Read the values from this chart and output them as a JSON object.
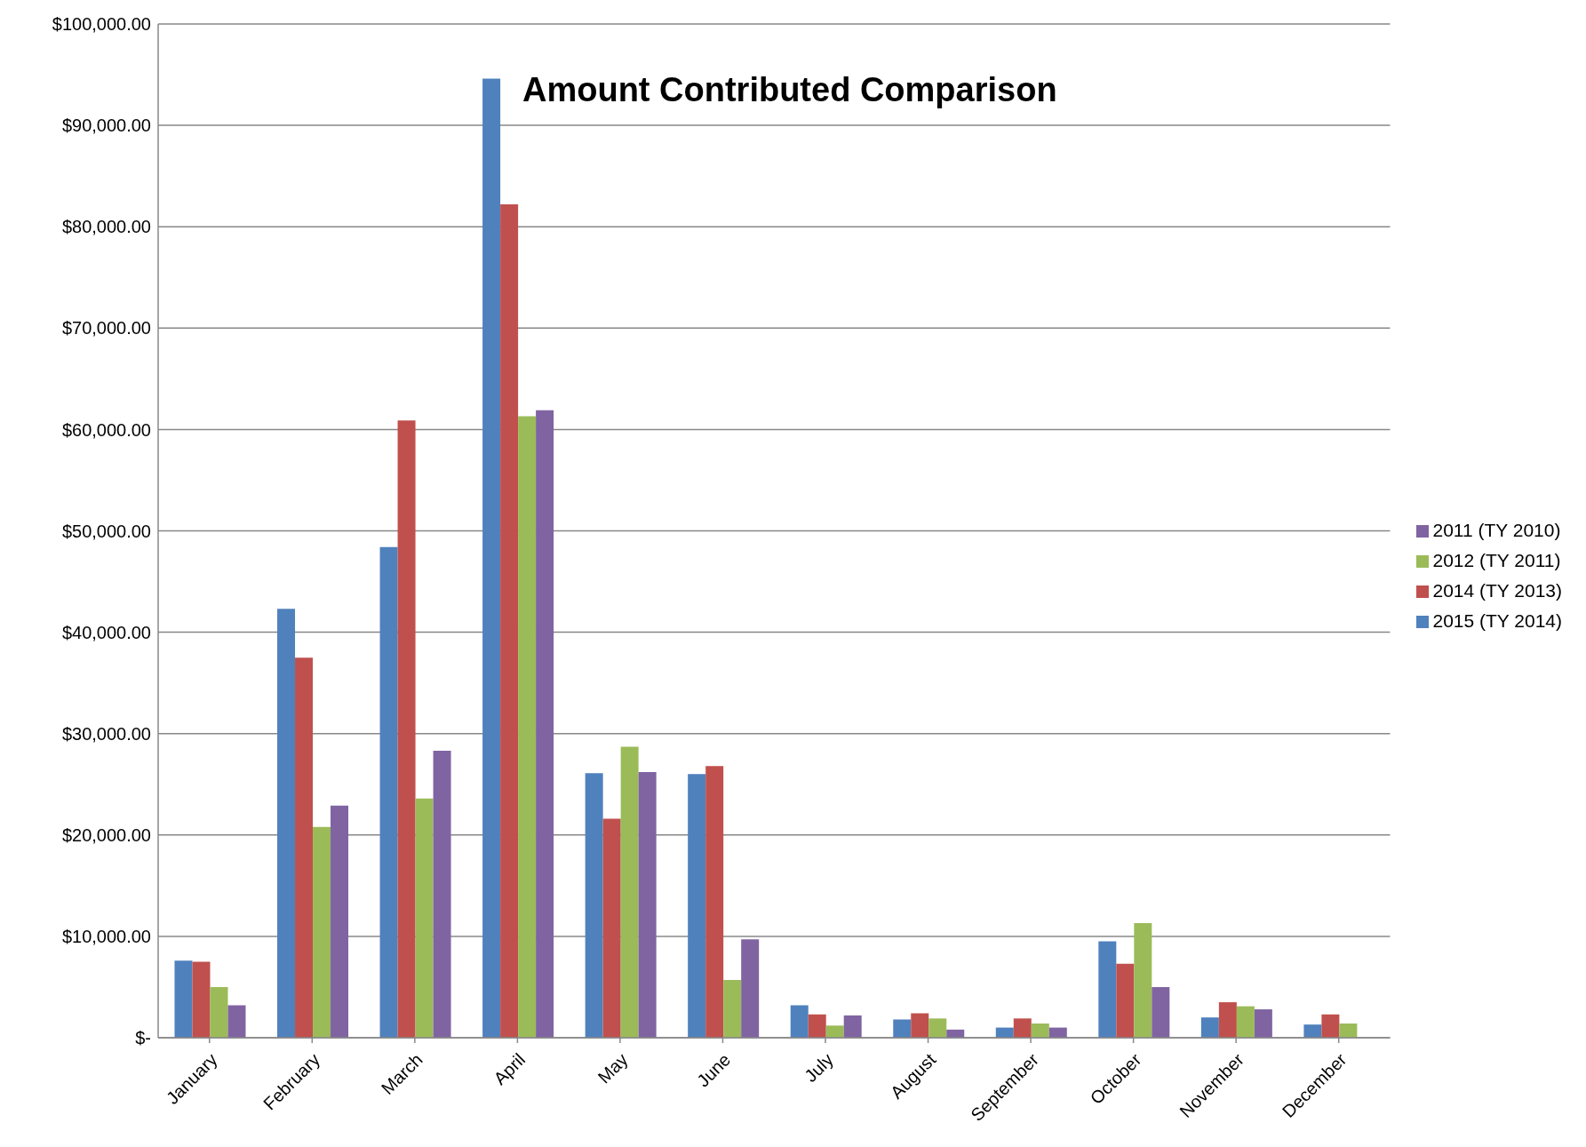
{
  "chart_data": {
    "type": "bar",
    "title": "Amount Contributed Comparison",
    "categories": [
      "January",
      "February",
      "March",
      "April",
      "May",
      "June",
      "July",
      "August",
      "September",
      "October",
      "November",
      "December"
    ],
    "series": [
      {
        "name": "2015 (TY 2014)",
        "color": "#4f81bd",
        "values": [
          7600,
          42300,
          48400,
          94600,
          26100,
          26000,
          3200,
          1800,
          1000,
          9500,
          2000,
          1300
        ]
      },
      {
        "name": "2014 (TY 2013)",
        "color": "#c0504d",
        "values": [
          7500,
          37500,
          60900,
          82200,
          21600,
          26800,
          2300,
          2400,
          1900,
          7300,
          3500,
          2300
        ]
      },
      {
        "name": "2012 (TY 2011)",
        "color": "#9bbb59",
        "values": [
          5000,
          20800,
          23600,
          61300,
          28700,
          5700,
          1200,
          1900,
          1400,
          11300,
          3100,
          1400
        ]
      },
      {
        "name": "2011 (TY 2010)",
        "color": "#8064a2",
        "values": [
          3200,
          22900,
          28300,
          61900,
          26200,
          9700,
          2200,
          800,
          1000,
          5000,
          2800,
          null
        ]
      }
    ],
    "ylim": [
      0,
      100000
    ],
    "yticks": [
      {
        "value": 0,
        "label": "$-"
      },
      {
        "value": 10000,
        "label": "$10,000.00"
      },
      {
        "value": 20000,
        "label": "$20,000.00"
      },
      {
        "value": 30000,
        "label": "$30,000.00"
      },
      {
        "value": 40000,
        "label": "$40,000.00"
      },
      {
        "value": 50000,
        "label": "$50,000.00"
      },
      {
        "value": 60000,
        "label": "$60,000.00"
      },
      {
        "value": 70000,
        "label": "$70,000.00"
      },
      {
        "value": 80000,
        "label": "$80,000.00"
      },
      {
        "value": 90000,
        "label": "$90,000.00"
      },
      {
        "value": 100000,
        "label": "$100,000.00"
      }
    ],
    "grid": "y",
    "legend": "right"
  }
}
